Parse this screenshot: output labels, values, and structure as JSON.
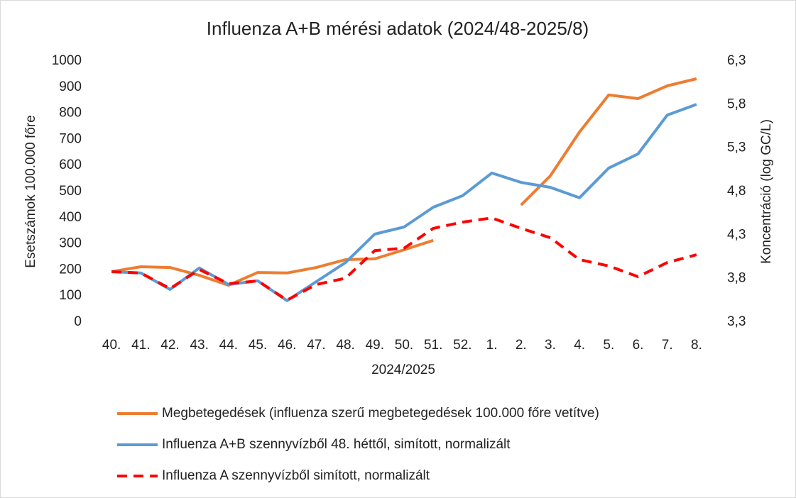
{
  "chart_data": {
    "type": "line",
    "title": "Influenza A+B mérési adatok (2024/48-2025/8)",
    "x_label": "2024/2025",
    "y_label": "Esetszámok 100.000 főre",
    "y2_label": "Koncentráció (log GC/L)",
    "categories": [
      "40.",
      "41.",
      "42.",
      "43.",
      "44.",
      "45.",
      "46.",
      "47.",
      "48.",
      "49.",
      "50.",
      "51.",
      "52.",
      "1.",
      "2.",
      "3.",
      "4.",
      "5.",
      "6.",
      "7.",
      "8."
    ],
    "series": [
      {
        "name": "Megbetegedések (influenza szerű megbetegedések 100.000 főre vetítve)",
        "color": "#ed7d31",
        "values": [
          193,
          212,
          209,
          179,
          141,
          190,
          188,
          209,
          239,
          242,
          277,
          313,
          null,
          null,
          448,
          560,
          728,
          870,
          856,
          905,
          932
        ]
      },
      {
        "name": "Influenza A+B szennyvízből 48. héttől, simított, normalizált",
        "color": "#5b9bd5",
        "values": [
          193,
          188,
          125,
          207,
          144,
          158,
          82,
          155,
          228,
          337,
          364,
          440,
          484,
          571,
          535,
          516,
          476,
          590,
          644,
          793,
          834
        ]
      },
      {
        "name": "Influenza A szennyvízből simított, normalizált",
        "color": "#ff0000",
        "dashed": true,
        "values": [
          193,
          188,
          128,
          201,
          147,
          158,
          84,
          144,
          168,
          274,
          283,
          359,
          383,
          399,
          359,
          323,
          239,
          215,
          174,
          228,
          258
        ]
      }
    ],
    "ylim": [
      0,
      1000
    ],
    "yticks": [
      0,
      100,
      200,
      300,
      400,
      500,
      600,
      700,
      800,
      900,
      1000
    ],
    "y2lim": [
      3.3,
      6.3
    ],
    "y2ticks": [
      {
        "value": 3.3,
        "label": "3,3"
      },
      {
        "value": 3.8,
        "label": "3,8"
      },
      {
        "value": 4.3,
        "label": "4,3"
      },
      {
        "value": 4.8,
        "label": "4,8"
      },
      {
        "value": 5.3,
        "label": "5,3"
      },
      {
        "value": 5.8,
        "label": "5,8"
      },
      {
        "value": 6.3,
        "label": "6,3"
      }
    ],
    "grid": false,
    "legend": "bottom"
  }
}
